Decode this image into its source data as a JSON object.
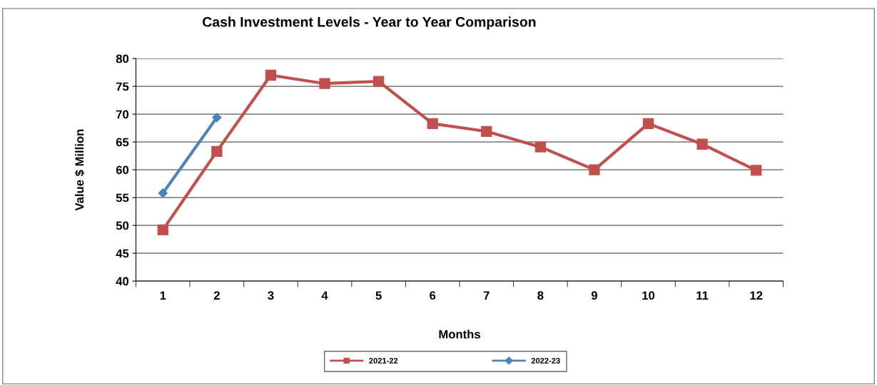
{
  "chart_data": {
    "type": "line",
    "title": "Cash Investment Levels - Year to Year Comparison",
    "xlabel": "Months",
    "ylabel": "Value $ Million",
    "categories": [
      "1",
      "2",
      "3",
      "4",
      "5",
      "6",
      "7",
      "8",
      "9",
      "10",
      "11",
      "12"
    ],
    "series": [
      {
        "name": "2021-22",
        "color": "#c0504d",
        "marker": "square",
        "values": [
          49.2,
          63.3,
          77.0,
          75.5,
          75.9,
          68.3,
          66.9,
          64.1,
          60.0,
          68.3,
          64.6,
          59.9
        ]
      },
      {
        "name": "2022-23",
        "color": "#4f81bd",
        "marker": "diamond",
        "values": [
          55.8,
          69.4,
          null,
          null,
          null,
          null,
          null,
          null,
          null,
          null,
          null,
          null
        ]
      }
    ],
    "ylim": [
      40,
      80
    ],
    "yticks": [
      40,
      45,
      50,
      55,
      60,
      65,
      70,
      75,
      80
    ],
    "grid": "y",
    "legend": "bottom",
    "line_style": "solid"
  }
}
